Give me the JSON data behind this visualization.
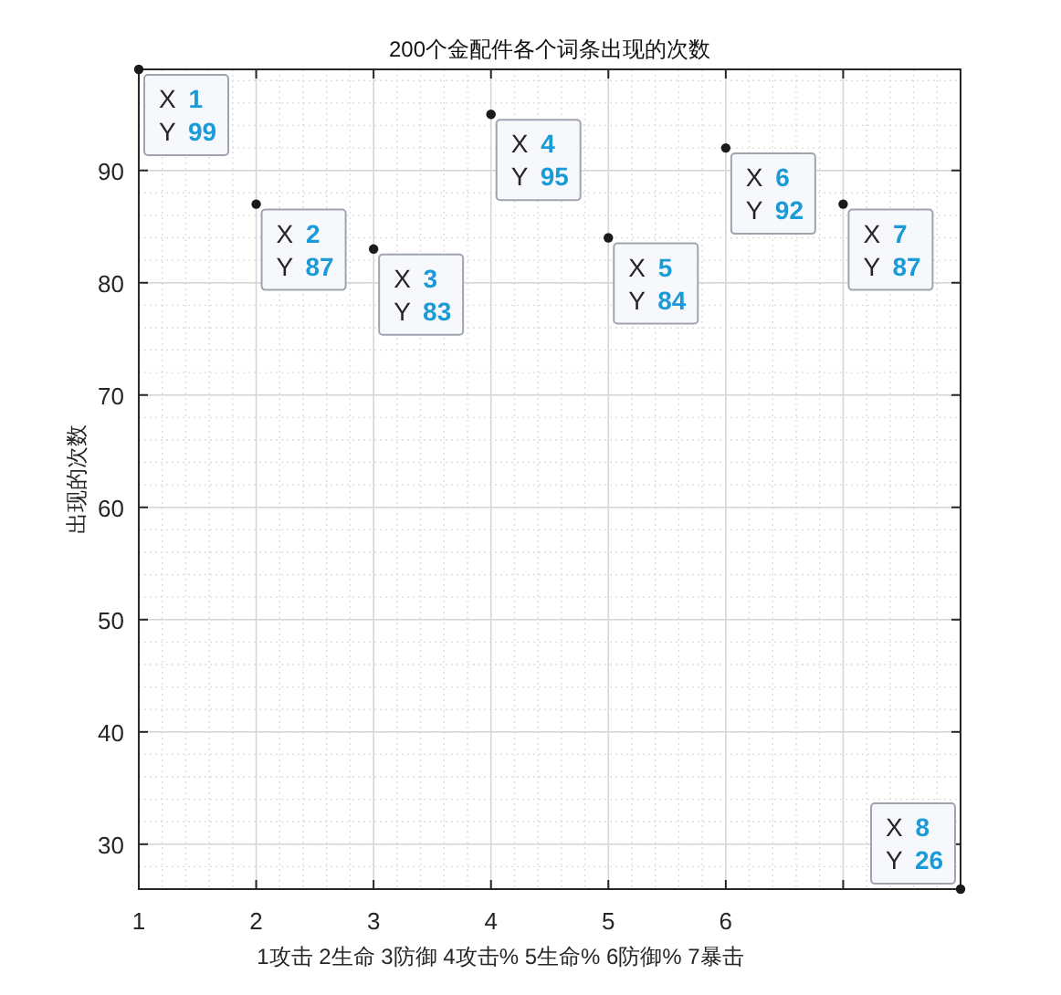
{
  "chart_data": {
    "type": "scatter",
    "title": "200个金配件各个词条出现的次数",
    "xlabel": "1攻击 2生命 3防御 4攻击% 5生命% 6防御% 7暴击",
    "ylabel": "出现的次数",
    "x": [
      1,
      2,
      3,
      4,
      5,
      6,
      7,
      8
    ],
    "series": [
      {
        "color": "#1a1a1a",
        "values": [
          99,
          87,
          83,
          95,
          84,
          92,
          87,
          26
        ]
      }
    ],
    "xlim": [
      1,
      8
    ],
    "ylim": [
      26,
      99
    ],
    "xticks": [
      1,
      2,
      3,
      4,
      5,
      6,
      {
        "value": 7,
        "label": null
      },
      {
        "value": 8,
        "label": null
      }
    ],
    "yticks": [
      30,
      40,
      50,
      60,
      70,
      80,
      90
    ],
    "grid": true,
    "marker": "circle",
    "annotations": [
      {
        "text": "X 1\nY 99",
        "x": 1,
        "y": 99
      },
      {
        "text": "X 2\nY 87",
        "x": 2,
        "y": 87
      },
      {
        "text": "X 3\nY 83",
        "x": 3,
        "y": 83
      },
      {
        "text": "X 4\nY 95",
        "x": 4,
        "y": 95
      },
      {
        "text": "X 5\nY 84",
        "x": 5,
        "y": 84
      },
      {
        "text": "X 6\nY 92",
        "x": 6,
        "y": 92
      },
      {
        "text": "X 7\nY 87",
        "x": 7,
        "y": 87
      },
      {
        "text": "X 8\nY 26",
        "x": 8,
        "y": 26
      }
    ]
  }
}
